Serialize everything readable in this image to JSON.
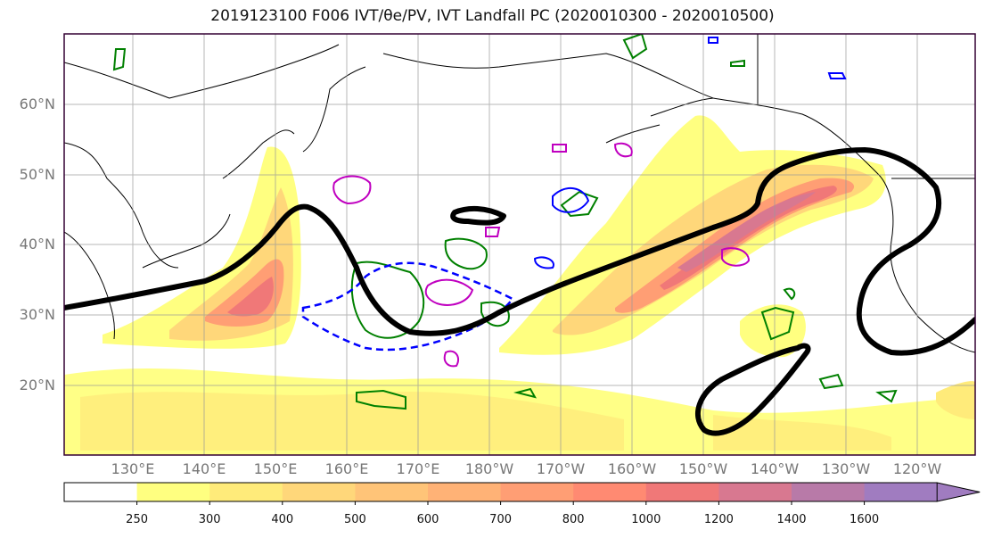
{
  "title": "2019123100 F006 IVT/θe/PV, IVT Landfall PC (2020010300 - 2020010500)",
  "lat_labels": [
    {
      "text": "60°N",
      "lat": 60
    },
    {
      "text": "50°N",
      "lat": 50
    },
    {
      "text": "40°N",
      "lat": 40
    },
    {
      "text": "30°N",
      "lat": 30
    },
    {
      "text": "20°N",
      "lat": 20
    }
  ],
  "lon_labels": [
    {
      "text": "130°E",
      "lon": 130
    },
    {
      "text": "140°E",
      "lon": 140
    },
    {
      "text": "150°E",
      "lon": 150
    },
    {
      "text": "160°E",
      "lon": 160
    },
    {
      "text": "170°E",
      "lon": 170
    },
    {
      "text": "180°W",
      "lon": 180
    },
    {
      "text": "170°W",
      "lon": 190
    },
    {
      "text": "160°W",
      "lon": 200
    },
    {
      "text": "150°W",
      "lon": 210
    },
    {
      "text": "140°W",
      "lon": 220
    },
    {
      "text": "130°W",
      "lon": 230
    },
    {
      "text": "120°W",
      "lon": 240
    }
  ],
  "colorbar": {
    "ticks": [
      "250",
      "300",
      "400",
      "500",
      "600",
      "700",
      "800",
      "1000",
      "1200",
      "1400",
      "1600"
    ],
    "colors": [
      "#ffff80",
      "#ffeb7a",
      "#ffd77a",
      "#ffc478",
      "#ffb276",
      "#ff9e74",
      "#ff8a72",
      "#f07878",
      "#d87890",
      "#b87aa8",
      "#a07cc0"
    ]
  },
  "colors": {
    "ivt_light": "#ffff80",
    "ivt_mid": "#ffc478",
    "ivt_core": "#f07878",
    "landfall_pc": "#000000",
    "theta_e": "#008000",
    "pv_neg": "#0000ff",
    "pv_pos": "#c000c0"
  }
}
